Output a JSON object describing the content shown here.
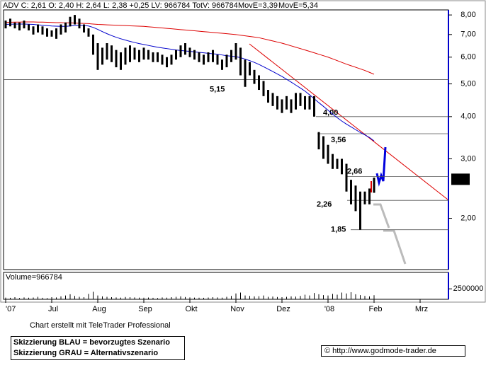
{
  "chart_data": {
    "type": "candlestick",
    "header": "ADV C: 2,61 O: 2,40 H: 2,64 L: 2,38 +0,25 LV: 966784 TotV: 966784",
    "categories": [
      "'07",
      null,
      null,
      null,
      null,
      null,
      null,
      null,
      null,
      null,
      "Jul",
      null,
      null,
      null,
      null,
      null,
      null,
      null,
      null,
      null,
      "Aug",
      null,
      null,
      null,
      null,
      null,
      null,
      null,
      null,
      null,
      "Sep",
      null,
      null,
      null,
      null,
      null,
      null,
      null,
      null,
      null,
      "Okt",
      null,
      null,
      null,
      null,
      null,
      null,
      null,
      null,
      null,
      "Nov",
      null,
      null,
      null,
      null,
      null,
      null,
      null,
      null,
      null,
      "Dez",
      null,
      null,
      null,
      null,
      null,
      null,
      null,
      null,
      null,
      "'08",
      null,
      null,
      null,
      null,
      null,
      null,
      null,
      null,
      null,
      "Feb",
      null,
      null,
      null,
      null,
      null,
      null,
      null,
      null,
      null,
      "Mrz",
      null,
      null,
      null,
      null,
      null,
      null
    ],
    "low": [
      7.3,
      7.4,
      7.3,
      7.2,
      7.3,
      7.2,
      7.0,
      7.1,
      7.0,
      6.9,
      6.9,
      6.8,
      7.0,
      7.1,
      7.4,
      7.5,
      7.3,
      7.1,
      6.9,
      6.1,
      5.5,
      5.7,
      5.9,
      5.8,
      5.6,
      5.5,
      5.7,
      5.8,
      5.9,
      5.8,
      5.9,
      5.9,
      5.8,
      5.8,
      5.7,
      5.6,
      5.7,
      5.9,
      6.0,
      6.1,
      6.0,
      5.9,
      5.8,
      5.7,
      5.8,
      5.8,
      5.7,
      5.5,
      5.6,
      5.8,
      5.9,
      5.3,
      4.9,
      5.3,
      5.0,
      4.8,
      4.6,
      4.4,
      4.3,
      4.2,
      4.1,
      4.2,
      4.1,
      4.2,
      4.3,
      4.2,
      4.2,
      4.0,
      3.2,
      3.0,
      2.9,
      2.8,
      2.8,
      2.7,
      2.4,
      2.2,
      2.1,
      1.85,
      2.2,
      2.2,
      2.38,
      null,
      null,
      null,
      null,
      null,
      null,
      null,
      null,
      null,
      null,
      null,
      null,
      null,
      null,
      null,
      null
    ],
    "high": [
      7.7,
      7.8,
      7.6,
      7.6,
      7.7,
      7.5,
      7.4,
      7.5,
      7.4,
      7.3,
      7.2,
      7.3,
      7.5,
      7.6,
      7.9,
      8.0,
      7.8,
      7.5,
      7.3,
      7.0,
      6.6,
      6.4,
      6.6,
      6.5,
      6.3,
      6.2,
      6.4,
      6.5,
      6.4,
      6.3,
      6.4,
      6.3,
      6.2,
      6.2,
      6.1,
      6.0,
      6.1,
      6.3,
      6.5,
      6.6,
      6.4,
      6.3,
      6.2,
      6.1,
      6.2,
      6.3,
      6.1,
      5.9,
      6.1,
      6.3,
      6.6,
      6.4,
      5.9,
      5.8,
      5.5,
      5.3,
      5.1,
      4.8,
      4.7,
      4.6,
      4.5,
      4.6,
      4.5,
      4.7,
      4.7,
      4.6,
      4.6,
      4.6,
      3.6,
      3.5,
      3.3,
      3.1,
      3.0,
      3.0,
      2.9,
      2.6,
      2.5,
      2.4,
      2.4,
      2.45,
      2.64,
      null,
      null,
      null,
      null,
      null,
      null,
      null,
      null,
      null,
      null,
      null,
      null,
      null,
      null,
      null,
      null
    ],
    "series": [
      {
        "name": "MovE=3,39",
        "color": "#0000cc",
        "values": [
          7.5,
          7.51,
          7.52,
          7.52,
          7.52,
          7.51,
          7.5,
          7.48,
          7.46,
          7.44,
          7.42,
          7.41,
          7.4,
          7.4,
          7.42,
          7.45,
          7.46,
          7.45,
          7.42,
          7.35,
          7.25,
          7.14,
          7.04,
          6.95,
          6.87,
          6.8,
          6.74,
          6.68,
          6.63,
          6.58,
          6.54,
          6.5,
          6.46,
          6.42,
          6.39,
          6.36,
          6.33,
          6.3,
          6.28,
          6.26,
          6.24,
          6.22,
          6.2,
          6.18,
          6.16,
          6.14,
          6.12,
          6.09,
          6.06,
          6.04,
          6.02,
          5.98,
          5.92,
          5.86,
          5.79,
          5.71,
          5.62,
          5.53,
          5.44,
          5.35,
          5.26,
          5.16,
          5.06,
          4.96,
          4.86,
          4.76,
          4.64,
          4.52,
          4.4,
          4.29,
          4.18,
          4.07,
          3.97,
          3.88,
          3.8,
          3.73,
          3.66,
          3.59,
          3.53,
          3.47,
          3.39,
          null,
          null,
          null,
          null,
          null,
          null,
          null,
          null,
          null,
          null,
          null,
          null,
          null,
          null,
          null,
          null
        ]
      },
      {
        "name": "MovE=5,34",
        "color": "#dd0000",
        "values": [
          7.6,
          7.61,
          7.62,
          7.62,
          7.63,
          7.63,
          7.63,
          7.62,
          7.62,
          7.61,
          7.6,
          7.59,
          7.59,
          7.58,
          7.58,
          7.57,
          7.56,
          7.55,
          7.54,
          7.52,
          7.5,
          7.49,
          7.48,
          7.47,
          7.46,
          7.45,
          7.44,
          7.43,
          7.42,
          7.41,
          7.4,
          7.38,
          7.36,
          7.34,
          7.32,
          7.3,
          7.28,
          7.26,
          7.24,
          7.22,
          7.2,
          7.18,
          7.16,
          7.14,
          7.12,
          7.1,
          7.08,
          7.06,
          7.04,
          7.02,
          7.0,
          6.97,
          6.94,
          6.91,
          6.88,
          6.85,
          6.8,
          6.75,
          6.7,
          6.65,
          6.6,
          6.54,
          6.48,
          6.42,
          6.36,
          6.3,
          6.24,
          6.18,
          6.12,
          6.06,
          6.0,
          5.93,
          5.86,
          5.79,
          5.72,
          5.66,
          5.6,
          5.54,
          5.48,
          5.41,
          5.34,
          null,
          null,
          null,
          null,
          null,
          null,
          null,
          null,
          null,
          null,
          null,
          null,
          null,
          null,
          null,
          null
        ]
      }
    ],
    "ylim": [
      1.41,
      8.28
    ],
    "log_scale": true,
    "yticks": [
      {
        "value": 2,
        "label": "2,00"
      },
      {
        "value": 3,
        "label": "3,00"
      },
      {
        "value": 4,
        "label": "4,00"
      },
      {
        "value": 5,
        "label": "5,00"
      },
      {
        "value": 6,
        "label": "6,00"
      },
      {
        "value": 7,
        "label": "7,00"
      },
      {
        "value": 8,
        "label": "8,00"
      }
    ],
    "levels": [
      {
        "value": 5.15,
        "label": "5,15"
      },
      {
        "value": 4.0,
        "label": "4,00"
      },
      {
        "value": 3.56,
        "label": "3,56"
      },
      {
        "value": 2.66,
        "label": "2,66"
      },
      {
        "value": 2.26,
        "label": "2,26"
      },
      {
        "value": 1.85,
        "label": "1,85"
      }
    ],
    "last": {
      "value": 2.61,
      "label": "2,61"
    },
    "volume": {
      "label": "Volume=966784",
      "ylim": [
        0,
        6430000
      ],
      "yticks": [
        2500000
      ],
      "values": [
        400000,
        350000,
        500000,
        300000,
        450000,
        380000,
        420000,
        600000,
        350000,
        300000,
        500000,
        450000,
        700000,
        900000,
        1200000,
        800000,
        600000,
        500000,
        1300000,
        1800000,
        900000,
        700000,
        600000,
        500000,
        450000,
        400000,
        550000,
        500000,
        450000,
        400000,
        380000,
        420000,
        350000,
        300000,
        450000,
        400000,
        500000,
        600000,
        700000,
        550000,
        450000,
        400000,
        380000,
        350000,
        420000,
        500000,
        450000,
        400000,
        600000,
        800000,
        1400000,
        1600000,
        900000,
        800000,
        700000,
        750000,
        900000,
        600000,
        650000,
        550000,
        500000,
        600000,
        700000,
        650000,
        800000,
        1100000,
        900000,
        1500000,
        1200000,
        1000000,
        900000,
        1300000,
        1100000,
        1600000,
        1400000,
        1700000,
        1200000,
        1000000,
        800000,
        700000,
        966784,
        null,
        null,
        null,
        null,
        null,
        null,
        null,
        null,
        null,
        null,
        null,
        null,
        null,
        null,
        null,
        null
      ]
    }
  },
  "footer": {
    "credit": "Chart erstellt mit TeleTrader Professional",
    "legend_blue": "Skizzierung BLAU = bevorzugtes Szenario",
    "legend_grey": "Skizzierung GRAU = Alternativszenario",
    "source": "© http://www.godmode-trader.de"
  }
}
